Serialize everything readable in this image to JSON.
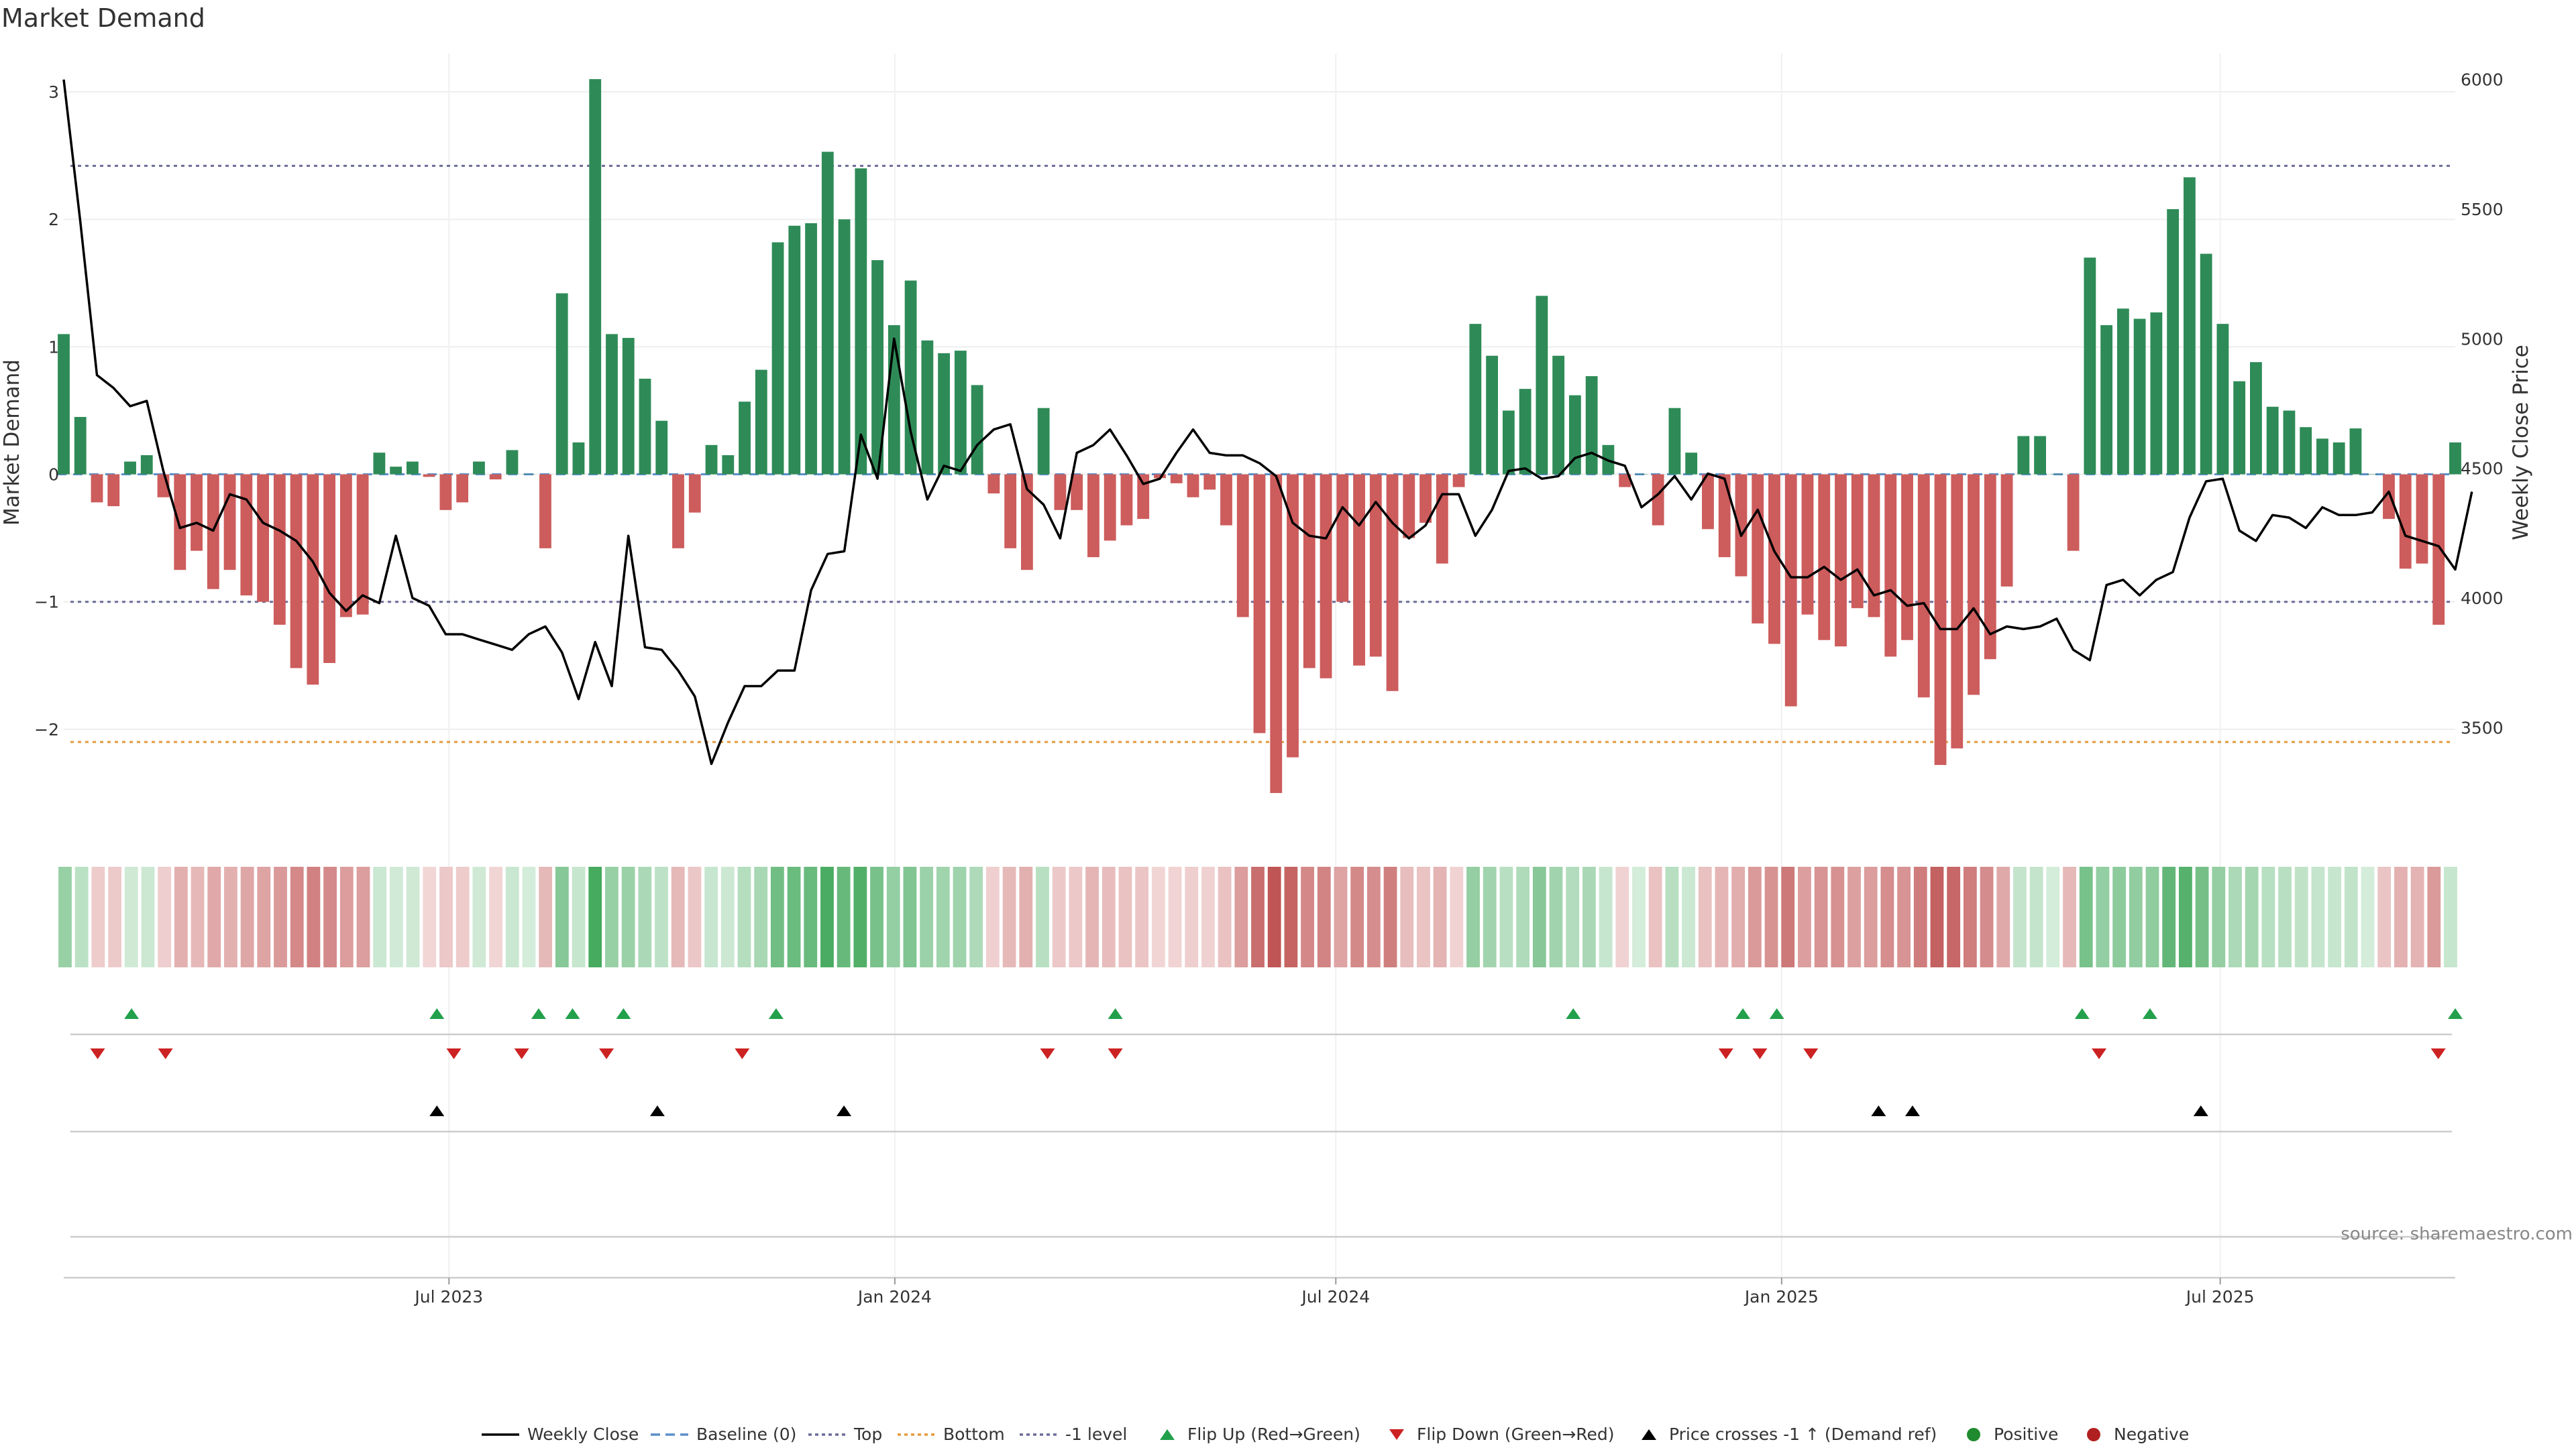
{
  "chart_data": {
    "type": "bar",
    "title": "Market Demand",
    "ylabel": "Market Demand",
    "y2label": "Weekly Close Price",
    "ylim": [
      -2.8,
      3.3
    ],
    "y2lim": [
      3100,
      6100
    ],
    "yticks": [
      3,
      2,
      1,
      0,
      -1,
      -2
    ],
    "ytick_labels": [
      "3",
      "2",
      "1",
      "0",
      "−1",
      "−2"
    ],
    "y2ticks": [
      6000,
      5500,
      5000,
      4500,
      4000,
      3500
    ],
    "y2tick_labels": [
      "6000",
      "5500",
      "5000",
      "4500",
      "4000",
      "3500"
    ],
    "x_start": "2023-01-23",
    "x_end": "2025-10-06",
    "x_interval_days": 7,
    "xticks": [
      {
        "date": "2023-07-01",
        "label": "Jul 2023"
      },
      {
        "date": "2024-01-01",
        "label": "Jan 2024"
      },
      {
        "date": "2024-07-01",
        "label": "Jul 2024"
      },
      {
        "date": "2025-01-01",
        "label": "Jan 2025"
      },
      {
        "date": "2025-07-01",
        "label": "Jul 2025"
      }
    ],
    "reference_lines": [
      {
        "name": "Top",
        "value": 2.42,
        "color": "#6b6b9a",
        "style": "dotted"
      },
      {
        "name": "-1 level",
        "value": -1.0,
        "color": "#6b6b9a",
        "style": "dotted"
      },
      {
        "name": "Bottom",
        "value": -2.1,
        "color": "#e39a3c",
        "style": "dotted"
      },
      {
        "name": "Baseline (0)",
        "value": 0,
        "color": "#5b8fc9",
        "style": "dashed"
      }
    ],
    "series": [
      {
        "name": "Market Demand",
        "type": "bar",
        "values": [
          1.1,
          0.45,
          -0.22,
          -0.25,
          0.1,
          0.15,
          -0.18,
          -0.75,
          -0.6,
          -0.9,
          -0.75,
          -0.95,
          -1.0,
          -1.18,
          -1.52,
          -1.65,
          -1.48,
          -1.12,
          -1.1,
          0.17,
          0.06,
          0.1,
          -0.02,
          -0.28,
          -0.22,
          0.1,
          -0.04,
          0.19,
          0.0,
          -0.58,
          1.42,
          0.25,
          3.1,
          1.1,
          1.07,
          0.75,
          0.42,
          -0.58,
          -0.3,
          0.23,
          0.15,
          0.57,
          0.82,
          1.82,
          1.95,
          1.97,
          2.53,
          2.0,
          2.4,
          1.68,
          1.17,
          1.52,
          1.05,
          0.95,
          0.97,
          0.7,
          -0.15,
          -0.58,
          -0.75,
          0.52,
          -0.28,
          -0.28,
          -0.65,
          -0.52,
          -0.4,
          -0.35,
          -0.03,
          -0.07,
          -0.18,
          -0.12,
          -0.4,
          -1.12,
          -2.03,
          -2.5,
          -2.22,
          -1.52,
          -1.6,
          -1.0,
          -1.5,
          -1.43,
          -1.7,
          -0.5,
          -0.38,
          -0.7,
          -0.1,
          1.18,
          0.93,
          0.5,
          0.67,
          1.4,
          0.93,
          0.62,
          0.77,
          0.23,
          -0.1,
          0.0,
          -0.4,
          0.52,
          0.17,
          -0.43,
          -0.65,
          -0.8,
          -1.17,
          -1.33,
          -1.82,
          -1.1,
          -1.3,
          -1.35,
          -1.05,
          -1.12,
          -1.43,
          -1.3,
          -1.75,
          -2.28,
          -2.15,
          -1.73,
          -1.45,
          -0.88,
          0.3,
          0.3,
          0.0,
          -0.6,
          1.7,
          1.17,
          1.3,
          1.22,
          1.27,
          2.08,
          2.33,
          1.73,
          1.18,
          0.73,
          0.88,
          0.53,
          0.5,
          0.37,
          0.28,
          0.25,
          0.36,
          0.0,
          -0.35,
          -0.74,
          -0.7,
          -1.18,
          0.25
        ]
      },
      {
        "name": "Weekly Close",
        "type": "line",
        "axis": "right",
        "values": [
          6000,
          5450,
          4860,
          4810,
          4740,
          4760,
          4490,
          4270,
          4290,
          4260,
          4400,
          4380,
          4290,
          4260,
          4220,
          4140,
          4020,
          3950,
          4010,
          3980,
          4240,
          4000,
          3970,
          3860,
          3860,
          3840,
          3820,
          3800,
          3860,
          3890,
          3790,
          3610,
          3830,
          3660,
          4240,
          3810,
          3800,
          3720,
          3620,
          3360,
          3520,
          3660,
          3660,
          3720,
          3720,
          4030,
          4170,
          4180,
          4630,
          4460,
          5000,
          4640,
          4380,
          4510,
          4490,
          4590,
          4650,
          4670,
          4420,
          4360,
          4230,
          4560,
          4590,
          4650,
          4550,
          4440,
          4460,
          4560,
          4650,
          4560,
          4550,
          4550,
          4520,
          4470,
          4290,
          4240,
          4230,
          4350,
          4280,
          4370,
          4290,
          4230,
          4280,
          4400,
          4400,
          4240,
          4340,
          4490,
          4500,
          4460,
          4470,
          4540,
          4560,
          4530,
          4510,
          4350,
          4400,
          4470,
          4380,
          4480,
          4460,
          4240,
          4340,
          4180,
          4080,
          4080,
          4120,
          4070,
          4110,
          4010,
          4030,
          3970,
          3980,
          3880,
          3880,
          3960,
          3860,
          3890,
          3880,
          3890,
          3920,
          3800,
          3760,
          4050,
          4070,
          4010,
          4070,
          4100,
          4310,
          4450,
          4460,
          4260,
          4220,
          4320,
          4310,
          4270,
          4350,
          4320,
          4320,
          4330,
          4410,
          4240,
          4220,
          4200,
          4110,
          4410
        ]
      }
    ],
    "colors": {
      "positive_bar": "#2e8b57",
      "negative_bar": "#cd5c5c",
      "price_line": "#000000",
      "flip_up": "#22a04b",
      "flip_down": "#cc2222",
      "price_cross": "#000000",
      "positive_dot": "#1f8a2e",
      "negative_dot": "#b02020"
    },
    "events": {
      "flip_up_dates": [
        "2023-02-20",
        "2023-06-26",
        "2023-08-07",
        "2023-08-21",
        "2023-09-11",
        "2023-11-13",
        "2024-04-01",
        "2024-10-07",
        "2024-12-16",
        "2024-12-30",
        "2025-05-05",
        "2025-06-02",
        "2025-10-06"
      ],
      "flip_down_dates": [
        "2023-02-06",
        "2023-03-06",
        "2023-07-03",
        "2023-07-31",
        "2023-09-04",
        "2023-10-30",
        "2024-03-04",
        "2024-04-01",
        "2024-12-09",
        "2024-12-23",
        "2025-01-13",
        "2025-05-12",
        "2025-09-29"
      ],
      "price_cross_dates": [
        "2023-06-26",
        "2023-09-25",
        "2023-12-11",
        "2025-02-10",
        "2025-02-24",
        "2025-06-23"
      ]
    },
    "legend_position": "bottom-center",
    "legend": [
      "Weekly Close",
      "Baseline (0)",
      "Top",
      "Bottom",
      "-1 level",
      "Flip Up (Red→Green)",
      "Flip Down (Green→Red)",
      "Price crosses -1 ↑ (Demand ref)",
      "Positive",
      "Negative"
    ],
    "source": "source: sharemaestro.com"
  }
}
